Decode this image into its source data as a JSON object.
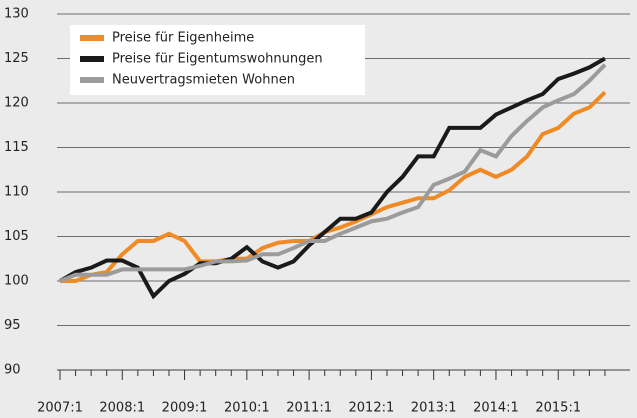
{
  "chart_data": {
    "type": "line",
    "categories": [
      "2007:1",
      null,
      null,
      null,
      "2008:1",
      null,
      null,
      null,
      "2009:1",
      null,
      null,
      null,
      "2010:1",
      null,
      null,
      null,
      "2011:1",
      null,
      null,
      null,
      "2012:1",
      null,
      null,
      null,
      "2013:1",
      null,
      null,
      null,
      "2014:1",
      null,
      null,
      null,
      "2015:1",
      null,
      null,
      null
    ],
    "series": [
      {
        "name": "Preise für Eigenheime",
        "color": "#f08a24",
        "values": [
          100,
          100,
          100.7,
          101,
          103,
          104.5,
          104.5,
          105.3,
          104.5,
          102.2,
          102.2,
          102.5,
          102.5,
          103.7,
          104.3,
          104.5,
          104.5,
          105.5,
          106,
          106.7,
          107.5,
          108.3,
          108.8,
          109.3,
          109.3,
          110.2,
          111.7,
          112.5,
          111.7,
          112.5,
          114,
          116.5,
          117.2,
          118.8,
          119.5,
          121.2
        ]
      },
      {
        "name": "Preise für Eigentumswohnungen",
        "color": "#1a1a1a",
        "values": [
          100,
          101,
          101.5,
          102.3,
          102.3,
          101.5,
          98.3,
          100,
          100.8,
          102,
          102,
          102.5,
          103.8,
          102.2,
          101.5,
          102.2,
          104,
          105.5,
          107,
          107,
          107.7,
          110,
          111.7,
          114,
          114,
          117.2,
          117.2,
          117.2,
          118.7,
          119.5,
          120.3,
          121,
          122.7,
          123.3,
          124,
          125
        ]
      },
      {
        "name": "Neuvertragsmieten Wohnen",
        "color": "#9b9b9b",
        "values": [
          100,
          100.7,
          100.7,
          100.7,
          101.3,
          101.3,
          101.3,
          101.3,
          101.3,
          101.7,
          102.2,
          102.2,
          102.3,
          103,
          103,
          103.7,
          104.5,
          104.5,
          105.3,
          106,
          106.7,
          107,
          107.7,
          108.3,
          110.8,
          111.5,
          112.3,
          114.7,
          114,
          116.3,
          118,
          119.5,
          120.3,
          121,
          122.5,
          124.3
        ]
      }
    ],
    "ylim": [
      90,
      130
    ],
    "yticks": [
      90,
      95,
      100,
      105,
      110,
      115,
      120,
      125,
      130
    ],
    "grid": true,
    "legend": "upper left"
  }
}
